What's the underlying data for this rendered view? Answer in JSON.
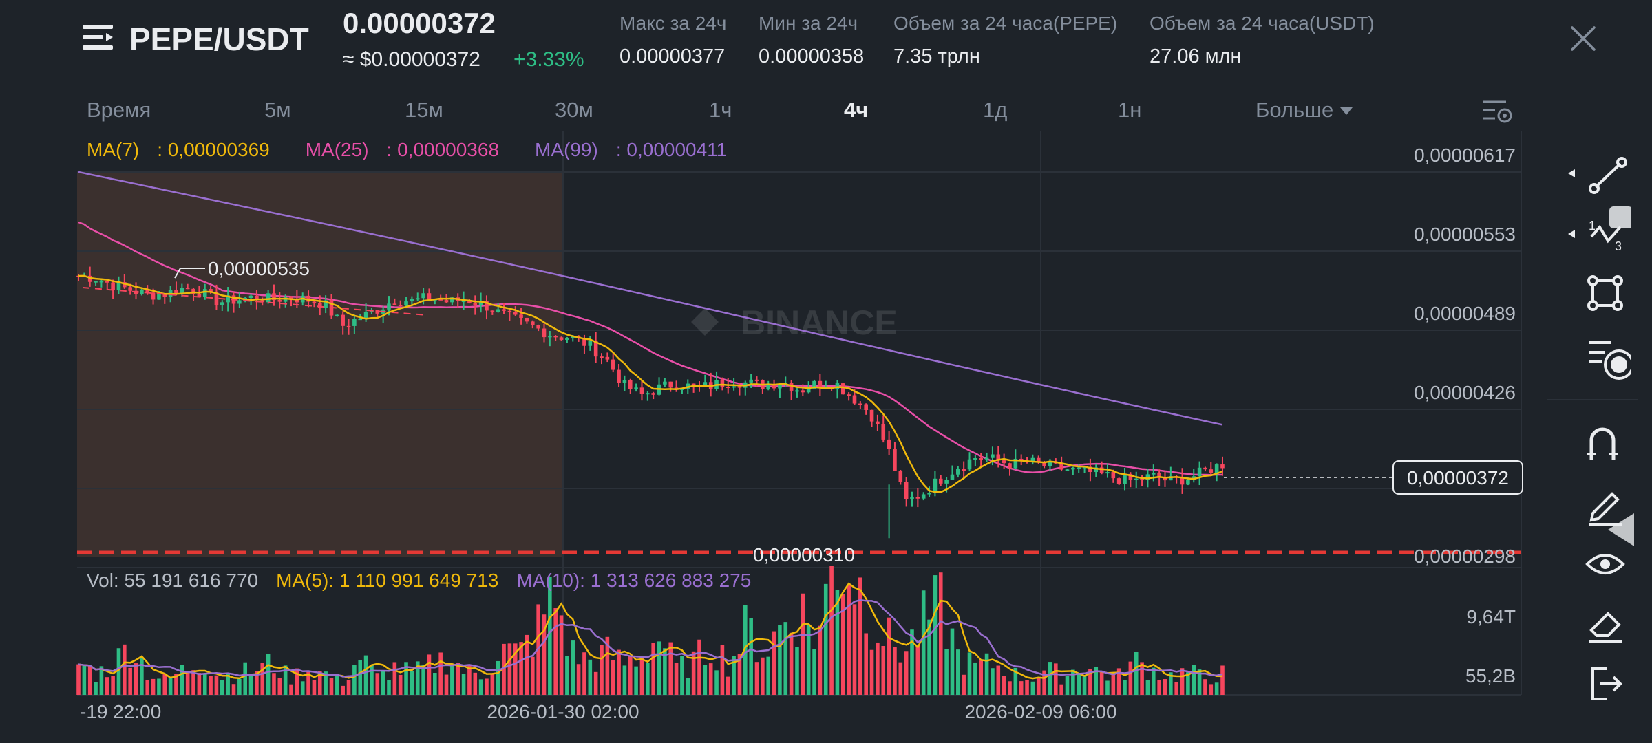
{
  "header": {
    "pair": "PEPE/USDT",
    "price": "0.00000372",
    "price_usd": "≈ $0.00000372",
    "change": "+3.33%",
    "stats": [
      {
        "label": "Макс за 24ч",
        "value": "0.00000377"
      },
      {
        "label": "Мин за 24ч",
        "value": "0.00000358"
      },
      {
        "label": "Объем за 24 часа(PEPE)",
        "value": "7.35 трлн"
      },
      {
        "label": "Объем за 24 часа(USDT)",
        "value": "27.06 млн"
      }
    ]
  },
  "tabs": [
    {
      "label": "Время",
      "active": false
    },
    {
      "label": "5м",
      "active": false
    },
    {
      "label": "15м",
      "active": false
    },
    {
      "label": "30м",
      "active": false
    },
    {
      "label": "1ч",
      "active": false
    },
    {
      "label": "4ч",
      "active": true
    },
    {
      "label": "1д",
      "active": false
    },
    {
      "label": "1н",
      "active": false
    },
    {
      "label": "Больше",
      "active": false
    }
  ],
  "colors": {
    "bg": "#1e2329",
    "up": "#2ebd85",
    "down": "#f6465d",
    "ma7": "#f0b90b",
    "ma25": "#e84fa8",
    "ma99": "#9a6fd0",
    "text_muted": "#848e9c",
    "highlight_zone": "#3b302e",
    "dashed_line": "#e53935"
  },
  "chart_data": {
    "type": "candlestick",
    "price_axis_ticks": [
      "0,00000617",
      "0,00000553",
      "0,00000489",
      "0,00000426",
      "0,00000298"
    ],
    "ma_legend": [
      {
        "name": "MA(7)",
        "value": "0,00000369"
      },
      {
        "name": "MA(25)",
        "value": "0,00000368"
      },
      {
        "name": "MA(99)",
        "value": "0,00000411"
      }
    ],
    "current_price_label": "0,00000372",
    "high_marker_label": "0,00000535",
    "low_marker_label": "0,00000310",
    "watermark": "BINANCE",
    "volume_legend": {
      "vol": "Vol: 55 191 616 770",
      "ma5": "MA(5): 1 110 991 649 713",
      "ma10": "MA(10): 1 313 626 883 275"
    },
    "volume_axis_ticks": [
      "9,64T",
      "55,2B"
    ],
    "time_axis_ticks": [
      "-19 22:00",
      "2026-01-30 02:00",
      "2026-02-09 06:00"
    ],
    "price_min": 2.98e-06,
    "price_max": 6.17e-06,
    "close_path": [
      5.3,
      5.28,
      5.22,
      5.18,
      5.14,
      5.15,
      5.2,
      5.16,
      5.08,
      5.1,
      5.12,
      5.1,
      5.12,
      5.1,
      5.06,
      4.88,
      4.95,
      5.02,
      5.1,
      5.09,
      5.12,
      5.08,
      5.1,
      5.06,
      4.98,
      4.92,
      4.86,
      4.8,
      4.78,
      4.72,
      4.6,
      4.38,
      4.3,
      4.36,
      4.4,
      4.36,
      4.38,
      4.42,
      4.4,
      4.38,
      4.42,
      4.34,
      4.4,
      4.4,
      4.28,
      4.15,
      3.85,
      3.4,
      3.48,
      3.6,
      3.7,
      3.78,
      3.76,
      3.72,
      3.74,
      3.7,
      3.68,
      3.66,
      3.64,
      3.6,
      3.58,
      3.62,
      3.58,
      3.6,
      3.66,
      3.72
    ],
    "volume_path": [
      1.5,
      1.0,
      1.4,
      2.5,
      1.0,
      0.7,
      1.2,
      1.7,
      0.9,
      1.0,
      1.2,
      1.5,
      0.8,
      1.2,
      1.0,
      0.6,
      1.8,
      0.8,
      1.3,
      1.0,
      1.4,
      1.8,
      1.1,
      0.9,
      2.2,
      1.9,
      3.0,
      4.8,
      2.0,
      1.6,
      2.0,
      1.5,
      1.9,
      2.8,
      1.2,
      1.6,
      2.4,
      1.5,
      3.2,
      2.0,
      3.4,
      4.1,
      2.6,
      6.8,
      5.8,
      4.0,
      2.6,
      2.1,
      3.4,
      4.2,
      1.8,
      1.3,
      1.5,
      1.0,
      0.8,
      1.2,
      0.9,
      1.4,
      1.1,
      0.8,
      1.6,
      1.2,
      0.9,
      1.1,
      0.8,
      1.0
    ]
  },
  "toolbar": [
    "line-tool-icon",
    "fib-tool-icon",
    "shape-tool-icon",
    "indicator-tool-icon",
    "magnet-tool-icon",
    "pen-tool-icon",
    "visibility-tool-icon",
    "eraser-tool-icon",
    "exit-tool-icon"
  ]
}
